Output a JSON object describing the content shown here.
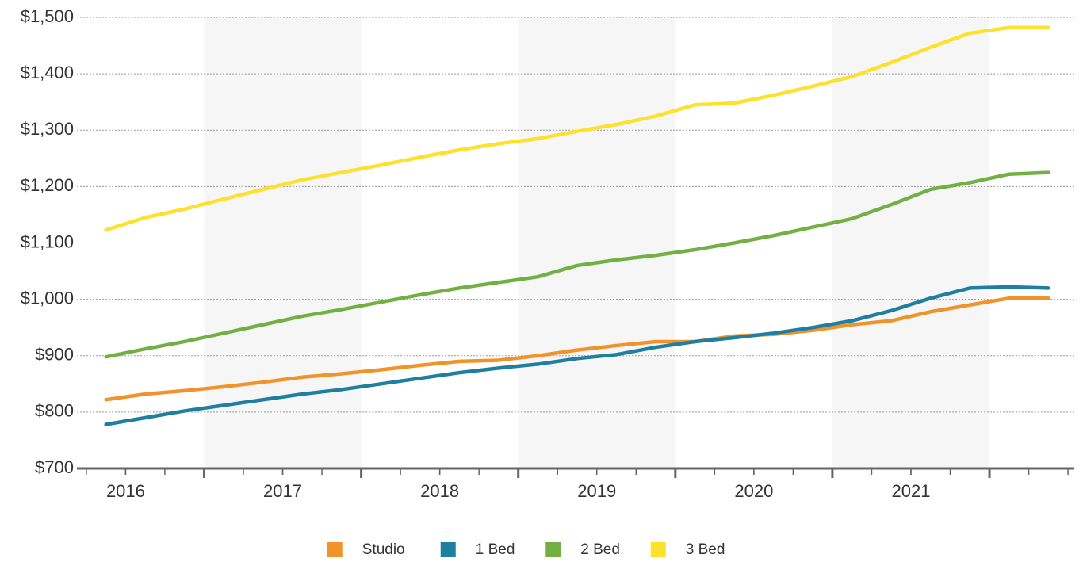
{
  "chart_data": {
    "type": "line",
    "x": [
      2016.375,
      2016.625,
      2016.875,
      2017.125,
      2017.375,
      2017.625,
      2017.875,
      2018.125,
      2018.375,
      2018.625,
      2018.875,
      2019.125,
      2019.375,
      2019.625,
      2019.875,
      2020.125,
      2020.375,
      2020.625,
      2020.875,
      2021.125,
      2021.375,
      2021.625,
      2021.875,
      2022.125,
      2022.375
    ],
    "series": [
      {
        "name": "Studio",
        "color": "#f0932b",
        "values": [
          822,
          832,
          838,
          845,
          853,
          862,
          868,
          875,
          883,
          890,
          892,
          900,
          910,
          918,
          925,
          925,
          935,
          938,
          945,
          955,
          962,
          978,
          990,
          1002,
          1002
        ]
      },
      {
        "name": "1 Bed",
        "color": "#1f7fa0",
        "values": [
          778,
          790,
          802,
          812,
          822,
          832,
          840,
          850,
          860,
          870,
          878,
          885,
          895,
          902,
          915,
          925,
          932,
          940,
          950,
          962,
          980,
          1002,
          1020,
          1022,
          1020
        ]
      },
      {
        "name": "2 Bed",
        "color": "#72b043",
        "values": [
          898,
          912,
          925,
          940,
          955,
          970,
          982,
          995,
          1008,
          1020,
          1030,
          1040,
          1060,
          1070,
          1078,
          1088,
          1100,
          1113,
          1128,
          1143,
          1168,
          1195,
          1207,
          1222,
          1225
        ]
      },
      {
        "name": "3 Bed",
        "color": "#fde12d",
        "values": [
          1123,
          1145,
          1160,
          1178,
          1195,
          1212,
          1225,
          1238,
          1252,
          1265,
          1276,
          1285,
          1298,
          1310,
          1325,
          1345,
          1348,
          1362,
          1378,
          1395,
          1420,
          1447,
          1472,
          1482,
          1482
        ]
      }
    ],
    "xlim": [
      2016.19,
      2022.54
    ],
    "xticks": [
      {
        "value": 2016.5,
        "label": "2016"
      },
      {
        "value": 2017.5,
        "label": "2017"
      },
      {
        "value": 2018.5,
        "label": "2018"
      },
      {
        "value": 2019.5,
        "label": "2019"
      },
      {
        "value": 2020.5,
        "label": "2020"
      },
      {
        "value": 2021.5,
        "label": "2021"
      }
    ],
    "ylim": [
      700,
      1500
    ],
    "yticks": [
      {
        "value": 700,
        "label": "$700"
      },
      {
        "value": 800,
        "label": "$800"
      },
      {
        "value": 900,
        "label": "$900"
      },
      {
        "value": 1000,
        "label": "$1,000"
      },
      {
        "value": 1100,
        "label": "$1,100"
      },
      {
        "value": 1200,
        "label": "$1,200"
      },
      {
        "value": 1300,
        "label": "$1,300"
      },
      {
        "value": 1400,
        "label": "$1,400"
      },
      {
        "value": 1500,
        "label": "$1,500"
      }
    ],
    "grid": true,
    "legend": "bottom"
  }
}
